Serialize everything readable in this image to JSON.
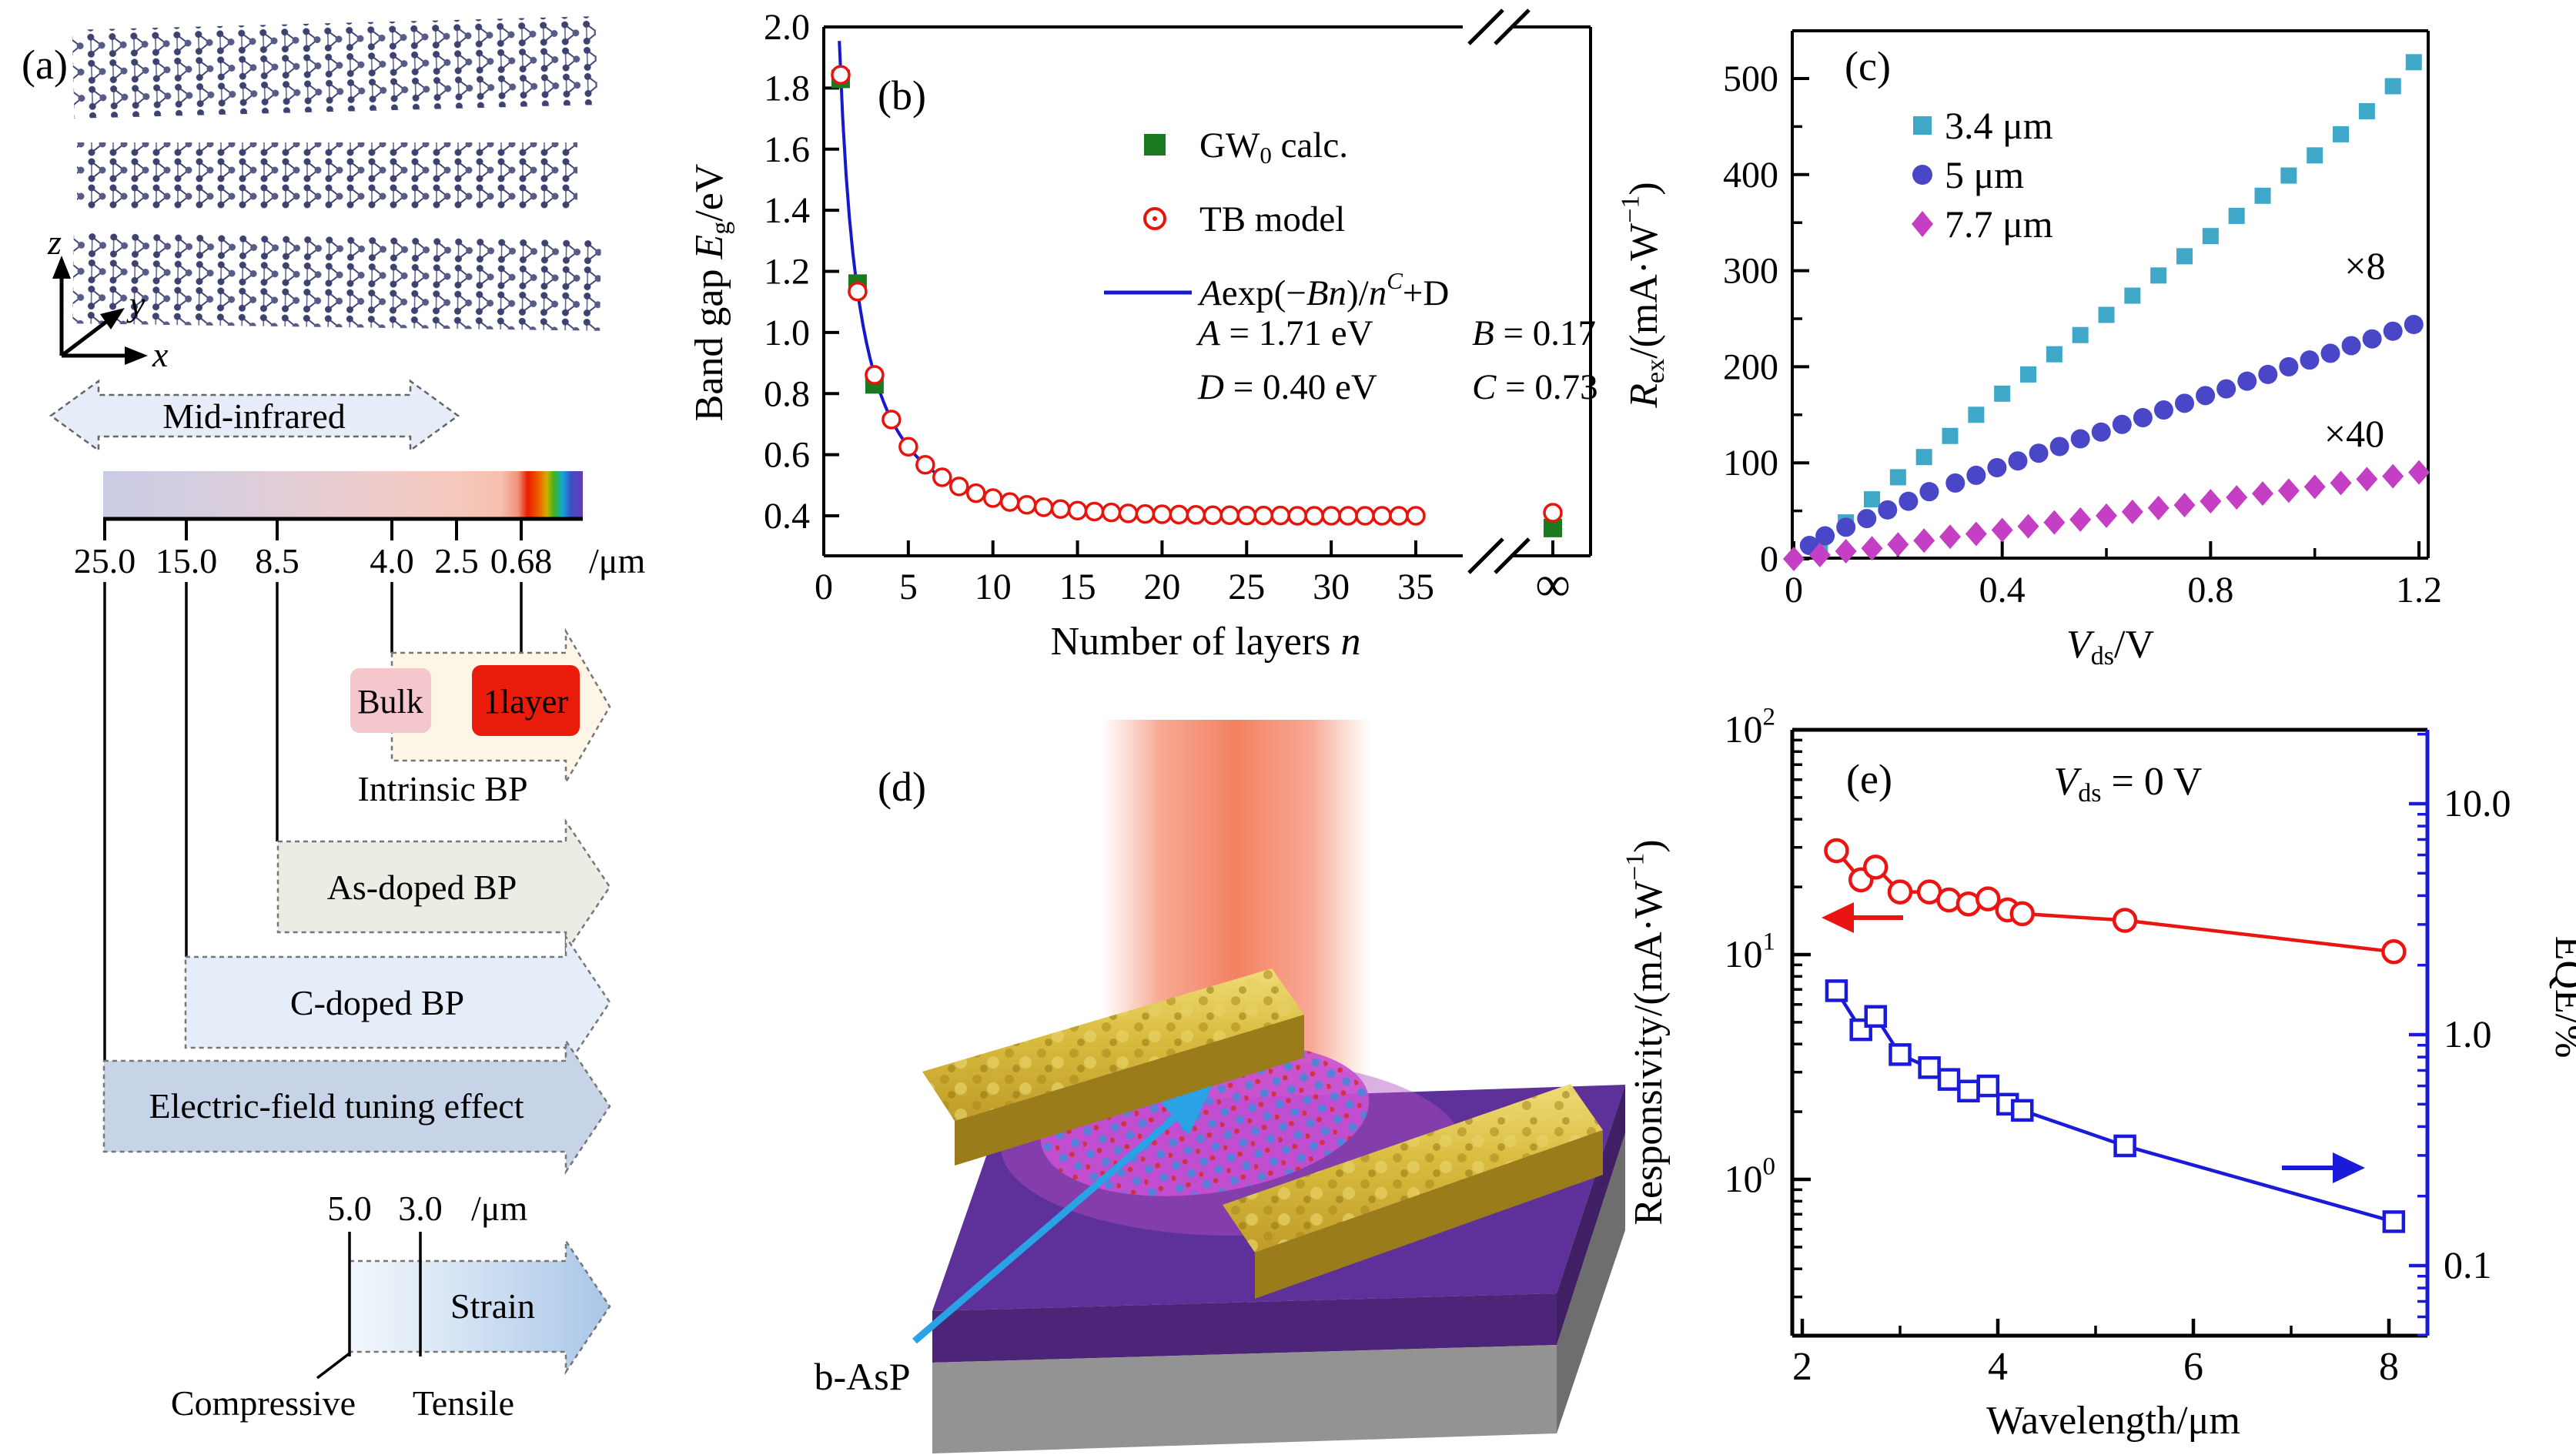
{
  "panel_a": {
    "label": "(a)",
    "axis_labels": {
      "z": "z",
      "y": "y",
      "x": "x"
    },
    "mid_infrared": "Mid-infrared",
    "spectrum": {
      "ticks": [
        "25.0",
        "15.0",
        "8.5",
        "4.0",
        "2.5",
        "0.68"
      ],
      "unit": "/μm"
    },
    "bulk_label": "Bulk",
    "monolayer_label": "1layer",
    "arrow_labels": {
      "intrinsic": "Intrinsic BP",
      "as_doped": "As-doped BP",
      "c_doped": "C-doped BP",
      "efield": "Electric-field tuning effect",
      "strain": "Strain"
    },
    "strain_ticks": {
      "t1": "5.0",
      "t2": "3.0",
      "unit": "/μm"
    },
    "strain_sub": {
      "compressive": "Compressive",
      "tensile": "Tensile"
    }
  },
  "panel_d": {
    "label": "(d)",
    "flake_label": "b-AsP"
  },
  "chart_data": [
    {
      "id": "b",
      "type": "scatter",
      "panel_label": "(b)",
      "xlabel": "Number of layers *n*",
      "ylabel": "Band gap *E*_{g}/eV",
      "xlim": [
        0,
        35
      ],
      "ylim": [
        0.33,
        2.0
      ],
      "xticks": [
        0,
        5,
        10,
        15,
        20,
        25,
        30,
        35
      ],
      "yticks": [
        0.4,
        0.6,
        0.8,
        1.0,
        1.2,
        1.4,
        1.6,
        1.8,
        2.0
      ],
      "axis_break": true,
      "infinity_label": "∞",
      "legend_position": "upper right inside",
      "grid": false,
      "series": [
        {
          "name": "GW_{0} calc.",
          "marker": "square",
          "x": [
            1,
            2,
            3
          ],
          "y": [
            1.83,
            1.16,
            0.83
          ],
          "inf_y": 0.36
        },
        {
          "name": "TB model",
          "marker": "circle-open",
          "x": [
            1,
            2,
            3,
            4,
            5,
            6,
            7,
            8,
            9,
            10,
            11,
            12,
            13,
            14,
            15,
            16,
            17,
            18,
            19,
            20,
            21,
            22,
            23,
            24,
            25,
            26,
            27,
            28,
            29,
            30,
            31,
            32,
            33,
            34,
            35
          ],
          "y": [
            1.843,
            1.134,
            0.861,
            0.715,
            0.626,
            0.567,
            0.526,
            0.496,
            0.474,
            0.458,
            0.445,
            0.436,
            0.428,
            0.422,
            0.417,
            0.414,
            0.411,
            0.408,
            0.406,
            0.405,
            0.404,
            0.403,
            0.402,
            0.402,
            0.401,
            0.401,
            0.401,
            0.4,
            0.4,
            0.4,
            0.4,
            0.4,
            0.4,
            0.4,
            0.4
          ],
          "inf_y": 0.41
        },
        {
          "name": "*A*exp(−*Bn*)/*n*^{*C*}+D",
          "marker": "line",
          "fit": {
            "A": 1.71,
            "B": 0.17,
            "C": 0.73,
            "D": 0.4
          }
        }
      ],
      "annotations": [
        "*A* = 1.71 eV",
        "*B* = 0.17",
        "*D* = 0.40 eV",
        "*C* = 0.73"
      ]
    },
    {
      "id": "c",
      "type": "scatter",
      "panel_label": "(c)",
      "xlabel": "*V*_{ds}/V",
      "ylabel": "*R*_{ex}/(mA·W^{−1})",
      "xlim": [
        0,
        1.22
      ],
      "ylim": [
        0,
        550
      ],
      "xticks": [
        0,
        0.4,
        0.8,
        1.2
      ],
      "xminor": [
        0.2,
        0.6,
        1.0
      ],
      "yticks": [
        0,
        100,
        200,
        300,
        400,
        500
      ],
      "yminor": [
        50,
        150,
        250,
        350,
        450
      ],
      "grid": false,
      "annotations": [
        "×8",
        "×40"
      ],
      "series": [
        {
          "name": "3.4 μm",
          "marker": "square",
          "x": [
            0.05,
            0.1,
            0.15,
            0.2,
            0.25,
            0.3,
            0.35,
            0.4,
            0.45,
            0.5,
            0.55,
            0.6,
            0.65,
            0.7,
            0.75,
            0.8,
            0.85,
            0.9,
            0.95,
            1.0,
            1.05,
            1.1,
            1.15,
            1.19
          ],
          "y": [
            12,
            38,
            62,
            85,
            106,
            128,
            150,
            172,
            192,
            213,
            233,
            254,
            274,
            295,
            315,
            336,
            357,
            378,
            399,
            420,
            442,
            466,
            492,
            517
          ]
        },
        {
          "name": "5 μm",
          "marker": "circle",
          "x": [
            0.03,
            0.06,
            0.1,
            0.14,
            0.18,
            0.22,
            0.26,
            0.31,
            0.35,
            0.39,
            0.43,
            0.47,
            0.51,
            0.55,
            0.59,
            0.63,
            0.67,
            0.71,
            0.75,
            0.79,
            0.83,
            0.87,
            0.91,
            0.95,
            0.99,
            1.03,
            1.07,
            1.11,
            1.15,
            1.19
          ],
          "y": [
            14,
            24,
            33,
            42,
            51,
            60,
            70,
            79,
            87,
            95,
            102,
            110,
            117,
            125,
            132,
            140,
            147,
            155,
            162,
            170,
            177,
            185,
            192,
            200,
            207,
            214,
            222,
            229,
            237,
            244
          ]
        },
        {
          "name": "7.7 μm",
          "marker": "diamond",
          "x": [
            0.0,
            0.05,
            0.1,
            0.15,
            0.2,
            0.25,
            0.3,
            0.35,
            0.4,
            0.45,
            0.5,
            0.55,
            0.6,
            0.65,
            0.7,
            0.75,
            0.8,
            0.85,
            0.9,
            0.95,
            1.0,
            1.05,
            1.1,
            1.15,
            1.2
          ],
          "y": [
            0,
            4,
            8,
            11,
            15,
            19,
            23,
            26,
            30,
            34,
            38,
            41,
            45,
            49,
            53,
            56,
            60,
            64,
            68,
            71,
            75,
            79,
            83,
            86,
            90
          ]
        }
      ]
    },
    {
      "id": "e",
      "type": "line-scatter",
      "panel_label": "(e)",
      "title_annotation": "*V*_{ds} = 0 V",
      "xlabel": "Wavelength/μm",
      "ylabel_left": "Responsivity/(mA·W^{−1})",
      "ylabel_right": "EQE/%",
      "xlim": [
        1.9,
        8.4
      ],
      "xticks": [
        2,
        4,
        6,
        8
      ],
      "xminor": [
        3,
        5,
        7
      ],
      "ylim_left_log": [
        0.2,
        100
      ],
      "yticks_left": [
        "10^{0}",
        "10^{1}",
        "10^{2}"
      ],
      "ylim_right_log": [
        0.05,
        21
      ],
      "yticks_right": [
        "0.1",
        "1.0",
        "10.0"
      ],
      "yticks_right_values": [
        0.1,
        1.0,
        10.0
      ],
      "grid": false,
      "series": [
        {
          "name": "Responsivity",
          "axis": "left",
          "marker": "circle-open",
          "x": [
            2.35,
            2.6,
            2.75,
            3.0,
            3.3,
            3.5,
            3.7,
            3.9,
            4.1,
            4.25,
            5.3,
            8.05
          ],
          "y": [
            29,
            21.5,
            24.5,
            19.0,
            19.0,
            17.5,
            16.8,
            17.7,
            15.8,
            15.2,
            14.2,
            10.3
          ]
        },
        {
          "name": "EQE",
          "axis": "right",
          "marker": "square-open",
          "x": [
            2.35,
            2.6,
            2.75,
            3.0,
            3.3,
            3.5,
            3.7,
            3.9,
            4.1,
            4.25,
            5.3,
            8.05
          ],
          "y": [
            1.55,
            1.05,
            1.2,
            0.82,
            0.72,
            0.64,
            0.57,
            0.6,
            0.5,
            0.47,
            0.33,
            0.155
          ]
        }
      ]
    }
  ],
  "colors": {
    "gw0_green": "#1b7a1f",
    "tb_red": "#e8140c",
    "fit_blue": "#1717cf",
    "series_34um": "#3fa8c8",
    "series_5um": "#4a46c8",
    "series_77um": "#c43fc4",
    "resp_red": "#ea1412",
    "eqe_blue": "#1a1ad8",
    "beam_salmon": "#f4785a",
    "gold": "#d9bc3f",
    "purple_layer": "#5e309a",
    "substrate_gray": "#939393",
    "flake_magenta": "#c84fd4",
    "pointer_cyan": "#29a3e6"
  }
}
